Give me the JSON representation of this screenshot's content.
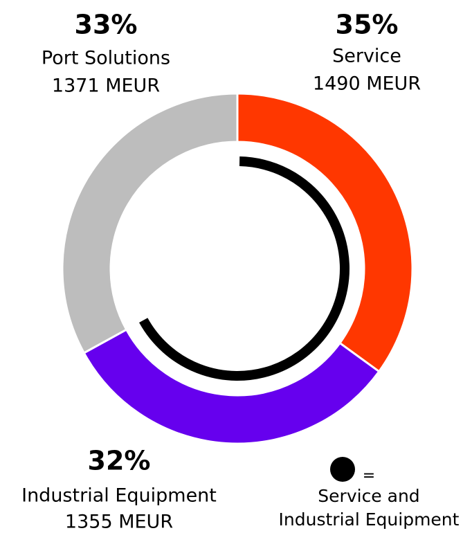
{
  "chart_data": {
    "type": "donut",
    "categories": [
      "Service",
      "Industrial Equipment",
      "Port Solutions"
    ],
    "values": [
      35,
      32,
      33
    ],
    "value_labels": [
      "35%",
      "32%",
      "33%"
    ],
    "amounts": [
      1490,
      1355,
      1371
    ],
    "amount_labels": [
      "1490 MEUR",
      "1355 MEUR",
      "1371 MEUR"
    ],
    "colors": [
      "#ff3700",
      "#6600ee",
      "#bdbdbd"
    ],
    "overlay": {
      "color": "#000000",
      "symbol": "=",
      "label_lines": [
        "Service and",
        "Industrial Equipment"
      ]
    }
  }
}
